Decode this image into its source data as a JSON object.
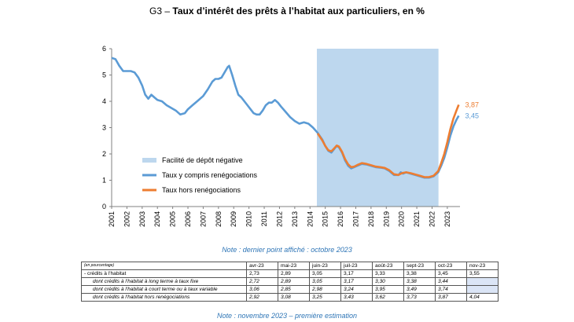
{
  "title": {
    "prefix": "G3 – ",
    "main": "Taux d’intérêt des prêts à l’habitat aux particuliers, en %"
  },
  "colors": {
    "incl": "#5b9bd5",
    "hors": "#ed7d31",
    "shade": "#bdd7ee"
  },
  "chart_data": {
    "type": "line",
    "ylim": [
      0,
      6
    ],
    "yticks": [
      "0",
      "1",
      "2",
      "3",
      "4",
      "5",
      "6"
    ],
    "xlim": [
      2001.0,
      2023.83
    ],
    "xticks": [
      "2001",
      "2002",
      "2003",
      "2004",
      "2005",
      "2006",
      "2007",
      "2008",
      "2009",
      "2010",
      "2011",
      "2012",
      "2013",
      "2014",
      "2015",
      "2016",
      "2017",
      "2018",
      "2019",
      "2020",
      "2021",
      "2022",
      "2023"
    ],
    "shade": {
      "label": "Facilité de dépôt négative",
      "x0": 2014.45,
      "x1": 2022.42
    },
    "series": [
      {
        "name": "Taux y compris renégociations",
        "end_label": "3,45",
        "points": [
          [
            2001.0,
            5.65
          ],
          [
            2001.25,
            5.6
          ],
          [
            2001.5,
            5.35
          ],
          [
            2001.75,
            5.15
          ],
          [
            2002.0,
            5.15
          ],
          [
            2002.25,
            5.15
          ],
          [
            2002.5,
            5.1
          ],
          [
            2002.75,
            4.9
          ],
          [
            2003.0,
            4.6
          ],
          [
            2003.2,
            4.25
          ],
          [
            2003.4,
            4.1
          ],
          [
            2003.6,
            4.25
          ],
          [
            2003.8,
            4.15
          ],
          [
            2004.0,
            4.05
          ],
          [
            2004.3,
            4.0
          ],
          [
            2004.6,
            3.85
          ],
          [
            2004.9,
            3.75
          ],
          [
            2005.2,
            3.65
          ],
          [
            2005.5,
            3.5
          ],
          [
            2005.8,
            3.55
          ],
          [
            2006.0,
            3.7
          ],
          [
            2006.3,
            3.85
          ],
          [
            2006.6,
            4.0
          ],
          [
            2006.8,
            4.1
          ],
          [
            2007.0,
            4.2
          ],
          [
            2007.3,
            4.45
          ],
          [
            2007.6,
            4.75
          ],
          [
            2007.8,
            4.85
          ],
          [
            2008.0,
            4.85
          ],
          [
            2008.2,
            4.9
          ],
          [
            2008.4,
            5.1
          ],
          [
            2008.6,
            5.3
          ],
          [
            2008.7,
            5.35
          ],
          [
            2008.9,
            5.0
          ],
          [
            2009.1,
            4.6
          ],
          [
            2009.3,
            4.25
          ],
          [
            2009.5,
            4.15
          ],
          [
            2009.7,
            4.0
          ],
          [
            2009.9,
            3.85
          ],
          [
            2010.1,
            3.7
          ],
          [
            2010.3,
            3.55
          ],
          [
            2010.5,
            3.5
          ],
          [
            2010.7,
            3.5
          ],
          [
            2010.9,
            3.65
          ],
          [
            2011.1,
            3.85
          ],
          [
            2011.3,
            3.95
          ],
          [
            2011.5,
            3.95
          ],
          [
            2011.7,
            4.05
          ],
          [
            2011.9,
            3.95
          ],
          [
            2012.1,
            3.8
          ],
          [
            2012.4,
            3.6
          ],
          [
            2012.7,
            3.4
          ],
          [
            2013.0,
            3.25
          ],
          [
            2013.3,
            3.15
          ],
          [
            2013.6,
            3.2
          ],
          [
            2013.9,
            3.15
          ],
          [
            2014.2,
            3.0
          ],
          [
            2014.5,
            2.8
          ],
          [
            2014.8,
            2.55
          ],
          [
            2015.0,
            2.3
          ],
          [
            2015.2,
            2.12
          ],
          [
            2015.4,
            2.05
          ],
          [
            2015.6,
            2.2
          ],
          [
            2015.75,
            2.3
          ],
          [
            2015.9,
            2.25
          ],
          [
            2016.1,
            2.05
          ],
          [
            2016.3,
            1.75
          ],
          [
            2016.5,
            1.55
          ],
          [
            2016.7,
            1.45
          ],
          [
            2016.9,
            1.5
          ],
          [
            2017.1,
            1.55
          ],
          [
            2017.4,
            1.62
          ],
          [
            2017.7,
            1.6
          ],
          [
            2018.0,
            1.55
          ],
          [
            2018.3,
            1.5
          ],
          [
            2018.6,
            1.48
          ],
          [
            2018.9,
            1.45
          ],
          [
            2019.2,
            1.35
          ],
          [
            2019.5,
            1.2
          ],
          [
            2019.8,
            1.2
          ],
          [
            2019.95,
            1.3
          ],
          [
            2020.1,
            1.25
          ],
          [
            2020.3,
            1.3
          ],
          [
            2020.6,
            1.25
          ],
          [
            2020.9,
            1.2
          ],
          [
            2021.2,
            1.15
          ],
          [
            2021.5,
            1.1
          ],
          [
            2021.8,
            1.1
          ],
          [
            2022.1,
            1.15
          ],
          [
            2022.4,
            1.3
          ],
          [
            2022.6,
            1.55
          ],
          [
            2022.8,
            1.85
          ],
          [
            2023.0,
            2.25
          ],
          [
            2023.2,
            2.7
          ],
          [
            2023.4,
            3.05
          ],
          [
            2023.6,
            3.3
          ],
          [
            2023.75,
            3.45
          ]
        ]
      },
      {
        "name": "Taux hors renégociations",
        "end_label": "3,87",
        "points": [
          [
            2014.5,
            2.78
          ],
          [
            2014.8,
            2.52
          ],
          [
            2015.0,
            2.3
          ],
          [
            2015.2,
            2.14
          ],
          [
            2015.4,
            2.1
          ],
          [
            2015.6,
            2.22
          ],
          [
            2015.75,
            2.32
          ],
          [
            2015.9,
            2.28
          ],
          [
            2016.1,
            2.08
          ],
          [
            2016.3,
            1.8
          ],
          [
            2016.5,
            1.6
          ],
          [
            2016.7,
            1.5
          ],
          [
            2016.9,
            1.52
          ],
          [
            2017.1,
            1.58
          ],
          [
            2017.4,
            1.65
          ],
          [
            2017.7,
            1.62
          ],
          [
            2018.0,
            1.57
          ],
          [
            2018.3,
            1.52
          ],
          [
            2018.6,
            1.5
          ],
          [
            2018.9,
            1.47
          ],
          [
            2019.2,
            1.38
          ],
          [
            2019.5,
            1.23
          ],
          [
            2019.8,
            1.2
          ],
          [
            2019.95,
            1.25
          ],
          [
            2020.1,
            1.28
          ],
          [
            2020.3,
            1.3
          ],
          [
            2020.6,
            1.27
          ],
          [
            2020.9,
            1.22
          ],
          [
            2021.2,
            1.17
          ],
          [
            2021.5,
            1.12
          ],
          [
            2021.8,
            1.12
          ],
          [
            2022.1,
            1.17
          ],
          [
            2022.4,
            1.35
          ],
          [
            2022.6,
            1.65
          ],
          [
            2022.8,
            2.0
          ],
          [
            2023.0,
            2.45
          ],
          [
            2023.2,
            2.95
          ],
          [
            2023.4,
            3.35
          ],
          [
            2023.6,
            3.65
          ],
          [
            2023.75,
            3.87
          ]
        ]
      }
    ]
  },
  "note_top": "Note : dernier point affiché : octobre 2023",
  "note_bottom": "Note : novembre 2023 – première estimation",
  "table": {
    "unit": "(en pourcentage)",
    "months": [
      "avr-23",
      "mai-23",
      "juin-23",
      "juil-23",
      "août-23",
      "sept-23",
      "oct-23",
      "nov-23"
    ],
    "rows": [
      {
        "label": "- crédits à l'habitat",
        "values": [
          "2,73",
          "2,89",
          "3,05",
          "3,17",
          "3,33",
          "3,38",
          "3,45",
          "3,55"
        ]
      },
      {
        "label": "dont crédits à l'habitat à long terme à taux fixe",
        "values": [
          "2,72",
          "2,89",
          "3,05",
          "3,17",
          "3,30",
          "3,38",
          "3,44",
          ""
        ]
      },
      {
        "label": "dont crédits à l'habitat à court terme ou à taux variable",
        "values": [
          "3,06",
          "2,85",
          "2,98",
          "3,24",
          "3,95",
          "3,49",
          "3,74",
          ""
        ]
      },
      {
        "label": "dont crédits à l'habitat hors renégociations",
        "values": [
          "2,92",
          "3,08",
          "3,25",
          "3,43",
          "3,62",
          "3,73",
          "3,87",
          "4,04"
        ]
      }
    ]
  }
}
